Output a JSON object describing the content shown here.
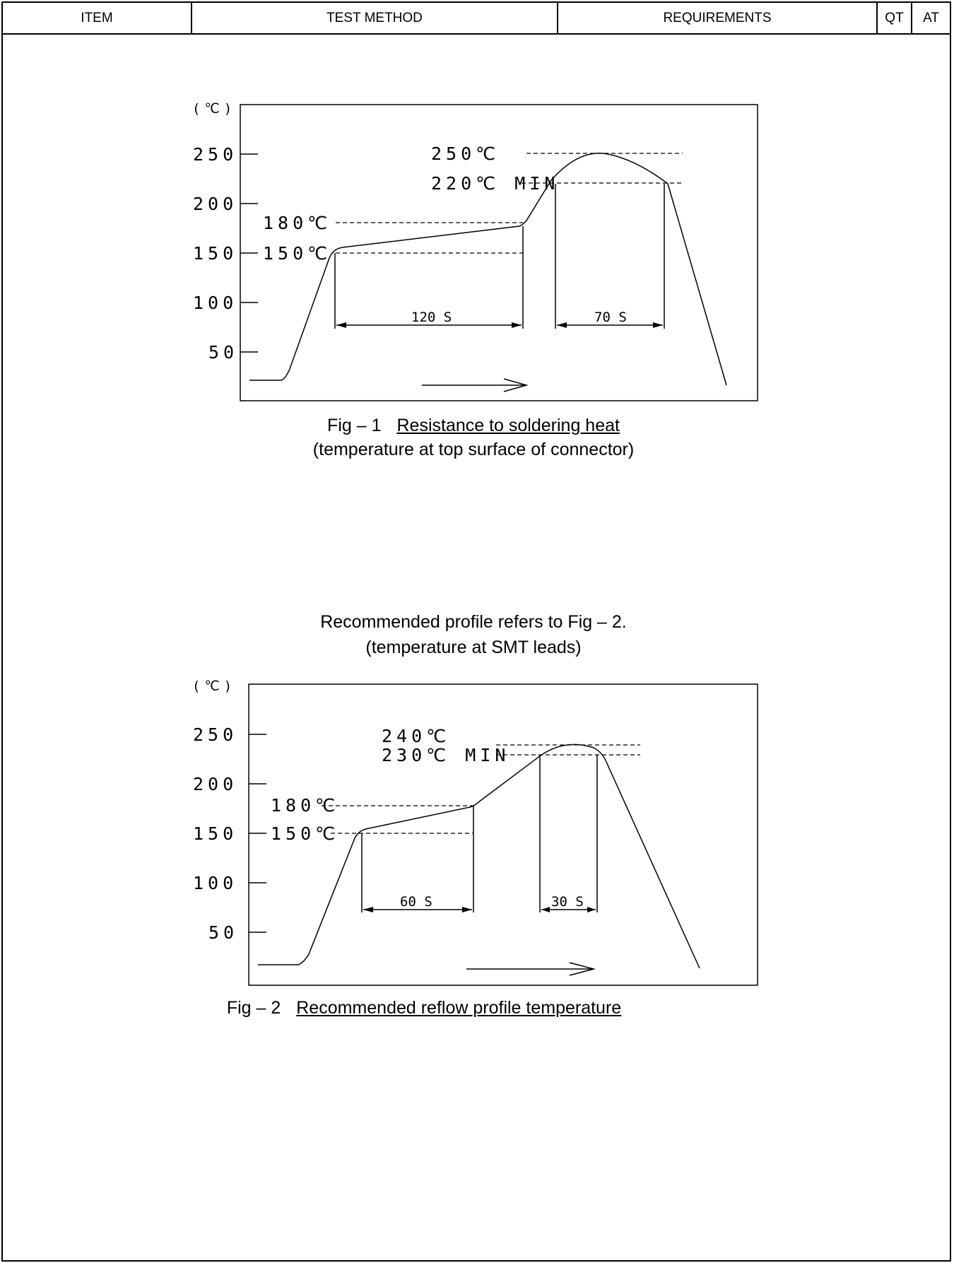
{
  "header": {
    "item": "ITEM",
    "test_method": "TEST METHOD",
    "requirements": "REQUIREMENTS",
    "qt": "QT",
    "at": "AT"
  },
  "figure1": {
    "unit": "(℃)",
    "ticks": [
      "250",
      "200",
      "150",
      "100",
      "50"
    ],
    "labels": {
      "peak": "250℃",
      "min": "220℃ MIN",
      "soak_high": "180℃",
      "soak_low": "150℃",
      "soak_time": "120 S",
      "above_min_time": "70 S"
    },
    "caption_prefix": "Fig – 1",
    "caption_title": "Resistance to soldering heat",
    "caption_note": "(temperature at top surface of connector)"
  },
  "figure2": {
    "intro_line1": "Recommended profile refers to Fig – 2.",
    "intro_line2": "(temperature at SMT leads)",
    "unit": "(℃)",
    "ticks": [
      "250",
      "200",
      "150",
      "100",
      "50"
    ],
    "labels": {
      "peak": "240℃",
      "min": "230℃ MIN",
      "soak_high": "180℃",
      "soak_low": "150℃",
      "soak_time": "60 S",
      "above_min_time": "30 S"
    },
    "caption_prefix": "Fig – 2",
    "caption_title": "Recommended reflow profile temperature"
  }
}
